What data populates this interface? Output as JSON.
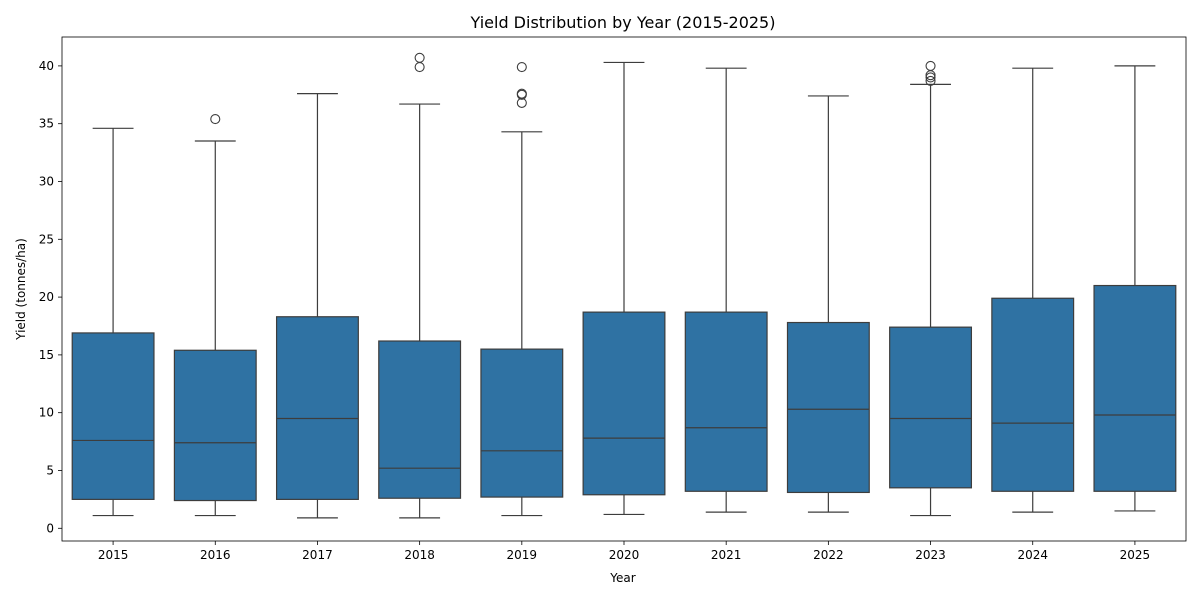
{
  "chart_data": {
    "type": "box",
    "title": "Yield Distribution by Year (2015-2025)",
    "xlabel": "Year",
    "ylabel": "Yield (tonnes/ha)",
    "ylim": [
      -1.1,
      42.5
    ],
    "yticks": [
      0,
      5,
      10,
      15,
      20,
      25,
      30,
      35,
      40
    ],
    "grid": false,
    "legend": "none",
    "color": "#2f72a3",
    "edge_color": "#3d3d3d",
    "categories": [
      "2015",
      "2016",
      "2017",
      "2018",
      "2019",
      "2020",
      "2021",
      "2022",
      "2023",
      "2024",
      "2025"
    ],
    "boxes": [
      {
        "category": "2015",
        "whisker_low": 1.1,
        "q1": 2.5,
        "median": 7.6,
        "q3": 16.9,
        "whisker_high": 34.6,
        "outliers": []
      },
      {
        "category": "2016",
        "whisker_low": 1.1,
        "q1": 2.4,
        "median": 7.4,
        "q3": 15.4,
        "whisker_high": 33.5,
        "outliers": [
          35.4
        ]
      },
      {
        "category": "2017",
        "whisker_low": 0.9,
        "q1": 2.5,
        "median": 9.5,
        "q3": 18.3,
        "whisker_high": 37.6,
        "outliers": []
      },
      {
        "category": "2018",
        "whisker_low": 0.9,
        "q1": 2.6,
        "median": 5.2,
        "q3": 16.2,
        "whisker_high": 36.7,
        "outliers": [
          39.9,
          40.7
        ]
      },
      {
        "category": "2019",
        "whisker_low": 1.1,
        "q1": 2.7,
        "median": 6.7,
        "q3": 15.5,
        "whisker_high": 34.3,
        "outliers": [
          36.8,
          37.5,
          37.6,
          39.9
        ]
      },
      {
        "category": "2020",
        "whisker_low": 1.2,
        "q1": 2.9,
        "median": 7.8,
        "q3": 18.7,
        "whisker_high": 40.3,
        "outliers": []
      },
      {
        "category": "2021",
        "whisker_low": 1.4,
        "q1": 3.2,
        "median": 8.7,
        "q3": 18.7,
        "whisker_high": 39.8,
        "outliers": []
      },
      {
        "category": "2022",
        "whisker_low": 1.4,
        "q1": 3.1,
        "median": 10.3,
        "q3": 17.8,
        "whisker_high": 37.4,
        "outliers": []
      },
      {
        "category": "2023",
        "whisker_low": 1.1,
        "q1": 3.5,
        "median": 9.5,
        "q3": 17.4,
        "whisker_high": 38.4,
        "outliers": [
          38.7,
          39.0,
          39.2,
          40.0
        ]
      },
      {
        "category": "2024",
        "whisker_low": 1.4,
        "q1": 3.2,
        "median": 9.1,
        "q3": 19.9,
        "whisker_high": 39.8,
        "outliers": []
      },
      {
        "category": "2025",
        "whisker_low": 1.5,
        "q1": 3.2,
        "median": 9.8,
        "q3": 21.0,
        "whisker_high": 40.0,
        "outliers": []
      }
    ]
  }
}
